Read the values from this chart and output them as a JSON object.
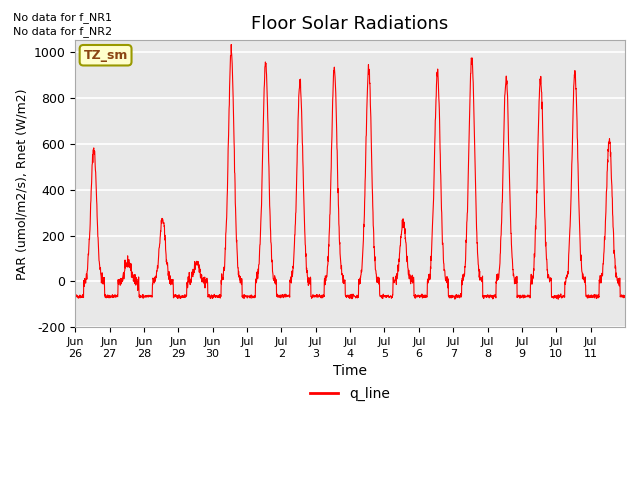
{
  "title": "Floor Solar Radiations",
  "xlabel": "Time",
  "ylabel": "PAR (umol/m2/s), Rnet (W/m2)",
  "ylim": [
    -200,
    1050
  ],
  "yticks": [
    -200,
    0,
    200,
    400,
    600,
    800,
    1000
  ],
  "legend_label": "q_line",
  "line_color": "red",
  "bg_color": "#e8e8e8",
  "fig_bg": "#ffffff",
  "no_data_text1": "No data for f_NR1",
  "no_data_text2": "No data for f_NR2",
  "tz_label": "TZ_sm",
  "x_tick_labels": [
    "Jun\n26",
    "Jun\n27",
    "Jun\n28",
    "Jun\n29",
    "Jun\n30",
    "Jul\n1",
    "Jul\n2",
    "Jul\n3",
    "Jul\n4",
    "Jul\n5",
    "Jul\n6",
    "Jul\n7",
    "Jul\n8",
    "Jul\n9",
    "Jul\n10",
    "Jul\n11"
  ],
  "num_days": 16,
  "day_peaks": [
    580,
    85,
    270,
    85,
    1000,
    950,
    870,
    920,
    920,
    255,
    905,
    970,
    890,
    880,
    905,
    615
  ]
}
